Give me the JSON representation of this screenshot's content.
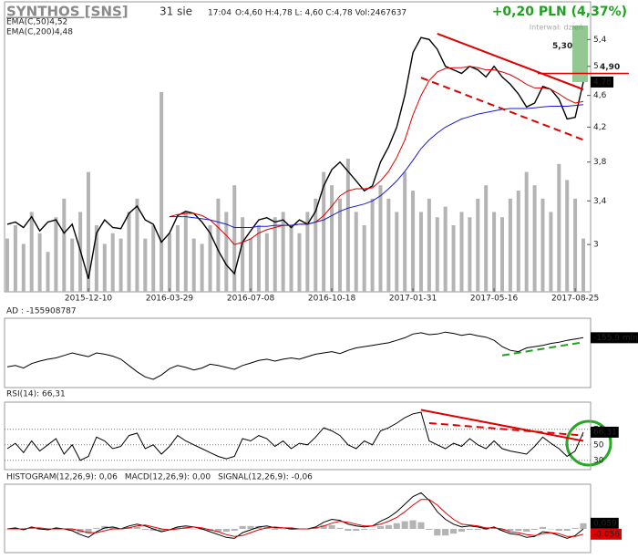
{
  "header": {
    "title": "SYNTHOS [SNS]",
    "date": "31 sie",
    "time": "17:04",
    "quote": "O:4,60 H:4,78 L: 4,60 C:4,78 Vol:2467637",
    "change": "+0,20 PLN (4,37%)",
    "interval": "Interwał: dzień"
  },
  "chart_data": [
    {
      "type": "line",
      "log_scale": true,
      "legend": "top-left",
      "ylim": [
        2.62,
        5.62
      ],
      "yticks": [
        3,
        {
          "value": 3.4,
          "label": "3,4"
        },
        {
          "value": 3.8,
          "label": "3,8"
        },
        {
          "value": 4.2,
          "label": "4,2"
        },
        {
          "value": 4.6,
          "label": "4,6"
        },
        5,
        {
          "value": 5.4,
          "label": "5,4"
        }
      ],
      "categories": [
        null,
        null,
        null,
        null,
        null,
        null,
        null,
        null,
        null,
        null,
        "2015-12-10",
        null,
        null,
        null,
        null,
        null,
        null,
        null,
        null,
        null,
        "2016-03-29",
        null,
        null,
        null,
        null,
        null,
        null,
        null,
        null,
        null,
        "2016-07-08",
        null,
        null,
        null,
        null,
        null,
        null,
        null,
        null,
        null,
        "2016-10-18",
        null,
        null,
        null,
        null,
        null,
        null,
        null,
        null,
        null,
        "2017-01-31",
        null,
        null,
        null,
        null,
        null,
        null,
        null,
        null,
        null,
        "2017-05-16",
        null,
        null,
        null,
        null,
        null,
        null,
        null,
        null,
        null,
        "2017-08-25",
        null
      ],
      "series": [
        {
          "color": "#000000",
          "values": [
            3.18,
            3.2,
            3.15,
            3.25,
            3.12,
            3.2,
            3.22,
            3.1,
            3.18,
            2.95,
            2.72,
            3.1,
            3.22,
            3.15,
            3.14,
            3.28,
            3.35,
            3.22,
            3.18,
            3.02,
            3.1,
            3.26,
            3.3,
            3.28,
            3.2,
            3.1,
            2.95,
            2.83,
            2.76,
            3.02,
            3.12,
            3.22,
            3.24,
            3.2,
            3.22,
            3.15,
            3.22,
            3.18,
            3.3,
            3.55,
            3.72,
            3.8,
            3.7,
            3.6,
            3.5,
            3.55,
            3.8,
            3.97,
            4.2,
            4.6,
            5.2,
            5.43,
            5.4,
            5.25,
            5.0,
            4.95,
            4.9,
            5.0,
            4.95,
            4.85,
            5.0,
            4.85,
            4.75,
            4.62,
            4.45,
            4.5,
            4.72,
            4.68,
            4.55,
            4.3,
            4.32,
            4.78
          ]
        },
        {
          "name": "EMA(C,50)4,52",
          "color": "#e00000",
          "values": [
            null,
            null,
            null,
            null,
            null,
            null,
            null,
            null,
            null,
            null,
            null,
            null,
            null,
            null,
            null,
            null,
            null,
            null,
            null,
            null,
            3.25,
            3.27,
            3.28,
            3.28,
            3.26,
            3.22,
            3.15,
            3.08,
            3.0,
            3.02,
            3.05,
            3.1,
            3.13,
            3.15,
            3.17,
            3.17,
            3.18,
            3.18,
            3.2,
            3.26,
            3.35,
            3.45,
            3.5,
            3.52,
            3.52,
            3.53,
            3.6,
            3.7,
            3.85,
            4.05,
            4.35,
            4.6,
            4.8,
            4.92,
            4.97,
            4.98,
            4.98,
            5.0,
            4.98,
            4.95,
            4.95,
            4.92,
            4.88,
            4.82,
            4.75,
            4.7,
            4.7,
            4.68,
            4.62,
            4.55,
            4.5,
            4.52
          ]
        },
        {
          "name": "EMA(C,200)4,48",
          "color": "#1a1ad0",
          "values": [
            null,
            null,
            null,
            null,
            null,
            null,
            null,
            null,
            null,
            null,
            null,
            null,
            null,
            null,
            null,
            null,
            null,
            null,
            null,
            null,
            3.25,
            3.25,
            3.25,
            3.24,
            3.23,
            3.22,
            3.2,
            3.18,
            3.15,
            3.15,
            3.15,
            3.16,
            3.16,
            3.17,
            3.17,
            3.17,
            3.18,
            3.18,
            3.2,
            3.22,
            3.26,
            3.3,
            3.33,
            3.35,
            3.37,
            3.4,
            3.45,
            3.52,
            3.6,
            3.7,
            3.82,
            3.95,
            4.05,
            4.13,
            4.2,
            4.25,
            4.3,
            4.33,
            4.36,
            4.38,
            4.4,
            4.42,
            4.43,
            4.43,
            4.43,
            4.44,
            4.45,
            4.46,
            4.46,
            4.46,
            4.47,
            4.48
          ]
        }
      ],
      "volume": {
        "color": "#b4b4b4",
        "ylim": [
          0,
          100
        ],
        "values": [
          20,
          25,
          18,
          30,
          22,
          15,
          28,
          35,
          20,
          30,
          45,
          25,
          18,
          22,
          20,
          30,
          35,
          20,
          25,
          75,
          22,
          25,
          30,
          20,
          18,
          25,
          35,
          30,
          40,
          28,
          20,
          25,
          22,
          28,
          30,
          25,
          22,
          30,
          35,
          45,
          40,
          35,
          50,
          30,
          25,
          35,
          40,
          35,
          30,
          45,
          38,
          30,
          35,
          28,
          32,
          25,
          30,
          28,
          35,
          40,
          30,
          28,
          35,
          38,
          45,
          40,
          35,
          30,
          48,
          42,
          35,
          20
        ]
      },
      "trendlines": [
        {
          "color": "#e00000",
          "dashed": false,
          "points": [
            [
              53,
              5.49
            ],
            [
              71,
              4.68
            ]
          ]
        },
        {
          "color": "#e00000",
          "dashed": true,
          "points": [
            [
              51,
              4.84
            ],
            [
              71,
              4.05
            ]
          ]
        }
      ],
      "markers": [
        {
          "value": 5.3,
          "label": "5,30",
          "color": "#3a9a3a",
          "style": "band"
        },
        {
          "value": 4.9,
          "label": "4,90",
          "color": "#e00000",
          "style": "line"
        },
        {
          "value": 4.78,
          "label": "4,78",
          "color": "#000000",
          "style": "box"
        }
      ]
    },
    {
      "type": "line",
      "title": "AD : -155908787",
      "ylim": [
        -235,
        -125
      ],
      "yticks": [],
      "series": [
        {
          "color": "#000000",
          "values": [
            -202,
            -200,
            -204,
            -197,
            -193,
            -190,
            -188,
            -184,
            -180,
            -183,
            -186,
            -180,
            -182,
            -185,
            -190,
            -200,
            -210,
            -218,
            -222,
            -215,
            -205,
            -200,
            -203,
            -207,
            -204,
            -198,
            -200,
            -203,
            -206,
            -200,
            -196,
            -192,
            -190,
            -193,
            -190,
            -188,
            -190,
            -186,
            -182,
            -180,
            -178,
            -181,
            -176,
            -172,
            -170,
            -168,
            -166,
            -164,
            -160,
            -156,
            -150,
            -148,
            -151,
            -150,
            -147,
            -149,
            -152,
            -150,
            -153,
            -155,
            -160,
            -170,
            -176,
            -178,
            -172,
            -170,
            -168,
            -165,
            -163,
            -160,
            -158,
            -155.9
          ]
        }
      ],
      "trendlines": [
        {
          "color": "#22a022",
          "dashed": true,
          "points": [
            [
              61,
              -184
            ],
            [
              71,
              -163
            ]
          ]
        }
      ],
      "markers": [
        {
          "value": -155.9,
          "label": "-155,9 mln",
          "color": "#000000",
          "style": "box"
        }
      ]
    },
    {
      "type": "line",
      "title": "RSI(14): 66,31",
      "ylim": [
        18,
        105
      ],
      "yticks": [
        30,
        50,
        70
      ],
      "grid": true,
      "series": [
        {
          "color": "#000000",
          "values": [
            45,
            52,
            40,
            55,
            42,
            50,
            58,
            38,
            50,
            30,
            35,
            60,
            55,
            45,
            48,
            62,
            65,
            45,
            50,
            38,
            48,
            62,
            55,
            50,
            45,
            40,
            35,
            32,
            35,
            58,
            55,
            62,
            58,
            48,
            55,
            45,
            52,
            50,
            60,
            72,
            68,
            62,
            50,
            45,
            55,
            50,
            68,
            72,
            78,
            85,
            90,
            92,
            55,
            50,
            45,
            52,
            48,
            58,
            50,
            45,
            55,
            45,
            42,
            40,
            38,
            48,
            60,
            52,
            45,
            35,
            42,
            66.31
          ]
        }
      ],
      "trendlines": [
        {
          "color": "#e00000",
          "dashed": false,
          "points": [
            [
              51,
              95
            ],
            [
              71,
              55
            ]
          ]
        },
        {
          "color": "#e00000",
          "dashed": true,
          "points": [
            [
              52,
              78
            ],
            [
              71,
              62
            ]
          ]
        }
      ],
      "markers": [
        {
          "value": 66.31,
          "label": "66,31",
          "color": "#000000",
          "style": "box"
        }
      ]
    },
    {
      "type": "line",
      "legend": "header",
      "ylim": [
        -0.25,
        0.47
      ],
      "yticks": [],
      "series": [
        {
          "name": "HISTOGRAM(12,26,9): 0,06",
          "color": "#b4b4b4",
          "type": "bar",
          "values": [
            0,
            0.01,
            -0.01,
            0.01,
            -0.01,
            -0.01,
            0.01,
            0,
            -0.02,
            -0.04,
            -0.05,
            0.01,
            0.03,
            0.02,
            0,
            0.02,
            0.02,
            -0.01,
            -0.02,
            -0.03,
            0,
            0.02,
            0.02,
            0,
            -0.01,
            -0.02,
            -0.03,
            -0.03,
            -0.02,
            0.03,
            0.03,
            0.03,
            0.02,
            -0.01,
            0,
            -0.01,
            0,
            0,
            0.01,
            0.04,
            0.04,
            0.01,
            -0.02,
            -0.02,
            -0.01,
            0,
            0.03,
            0.04,
            0.06,
            0.08,
            0.09,
            0.07,
            -0.01,
            -0.07,
            -0.07,
            -0.05,
            -0.03,
            -0.01,
            -0.01,
            -0.01,
            0.01,
            -0.02,
            -0.02,
            -0.02,
            -0.03,
            -0.01,
            0.02,
            0,
            -0.02,
            -0.02,
            0.01,
            0.059
          ]
        },
        {
          "name": "MACD(12,26,9): 0,00",
          "color": "#000000",
          "values": [
            0,
            0.01,
            -0.01,
            0.02,
            0,
            -0.01,
            0.01,
            0,
            -0.02,
            -0.06,
            -0.09,
            -0.03,
            0.01,
            0.02,
            0,
            0.03,
            0.05,
            0.03,
            0,
            -0.03,
            -0.01,
            0.02,
            0.03,
            0.02,
            0,
            -0.03,
            -0.06,
            -0.09,
            -0.1,
            -0.04,
            -0.01,
            0.02,
            0.03,
            0.01,
            0.01,
            0,
            0,
            0,
            0.02,
            0.07,
            0.1,
            0.09,
            0.05,
            0.03,
            0.02,
            0.03,
            0.08,
            0.12,
            0.18,
            0.26,
            0.34,
            0.38,
            0.3,
            0.18,
            0.1,
            0.05,
            0.02,
            0.03,
            0.02,
            0,
            0.02,
            -0.02,
            -0.05,
            -0.06,
            -0.09,
            -0.08,
            -0.03,
            -0.04,
            -0.07,
            -0.1,
            -0.07,
            0
          ]
        },
        {
          "name": "SIGNAL(12,26,9): -0,06",
          "color": "#e00000",
          "values": [
            0,
            0,
            0,
            0.01,
            0.01,
            0,
            0,
            0,
            0,
            -0.02,
            -0.04,
            -0.04,
            -0.02,
            0,
            0,
            0.01,
            0.03,
            0.04,
            0.02,
            0,
            -0.01,
            0,
            0.01,
            0.02,
            0.01,
            -0.01,
            -0.03,
            -0.06,
            -0.08,
            -0.07,
            -0.04,
            -0.01,
            0.01,
            0.02,
            0.01,
            0.01,
            0,
            0,
            0.01,
            0.03,
            0.06,
            0.08,
            0.07,
            0.05,
            0.03,
            0.03,
            0.05,
            0.08,
            0.12,
            0.18,
            0.25,
            0.31,
            0.31,
            0.25,
            0.17,
            0.1,
            0.05,
            0.04,
            0.03,
            0.01,
            0.01,
            0,
            -0.03,
            -0.04,
            -0.06,
            -0.07,
            -0.05,
            -0.04,
            -0.05,
            -0.08,
            -0.08,
            -0.056
          ]
        }
      ],
      "markers": [
        {
          "value": 0.059,
          "label": "0,059",
          "color": "#000000",
          "style": "box"
        },
        {
          "value": -0.056,
          "label": "-0,056",
          "color": "#e00000",
          "style": "box"
        }
      ]
    }
  ]
}
